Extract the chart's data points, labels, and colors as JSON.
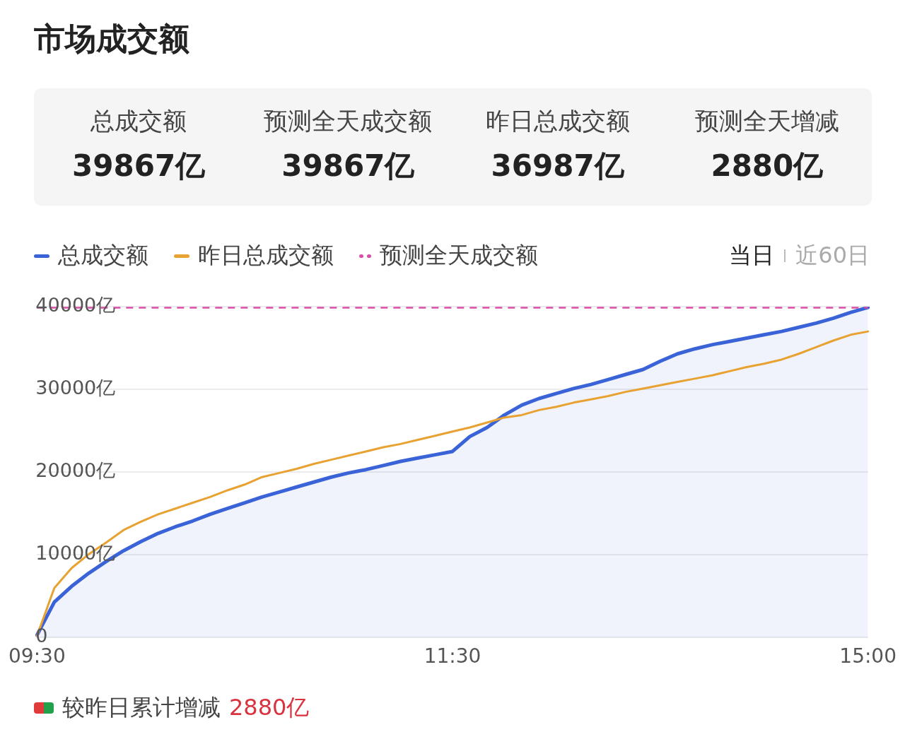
{
  "chart_data": {
    "type": "line",
    "title": "市场成交额",
    "annotations": [
      "总成交额",
      "39867亿",
      "预测全天成交额",
      "39867亿",
      "昨日总成交额",
      "36987亿",
      "预测全天增减",
      "2880亿",
      "当日",
      "近60日",
      "较昨日累计增减",
      "2880亿"
    ],
    "categories": [
      "09:30",
      null,
      null,
      null,
      null,
      null,
      null,
      null,
      null,
      null,
      null,
      null,
      null,
      null,
      null,
      null,
      null,
      null,
      null,
      null,
      null,
      null,
      null,
      null,
      "11:30",
      null,
      null,
      null,
      null,
      null,
      null,
      null,
      null,
      null,
      null,
      null,
      null,
      null,
      null,
      null,
      null,
      null,
      null,
      null,
      null,
      null,
      null,
      null,
      "15:00"
    ],
    "series": [
      {
        "name": "总成交额",
        "type": "area",
        "color": "#3a63d8",
        "values": [
          300,
          4300,
          6200,
          7800,
          9200,
          10500,
          11600,
          12600,
          13400,
          14100,
          14900,
          15600,
          16300,
          17000,
          17600,
          18200,
          18800,
          19400,
          19900,
          20300,
          20800,
          21300,
          21700,
          22100,
          22500,
          24300,
          25400,
          26900,
          28100,
          28900,
          29500,
          30100,
          30600,
          31200,
          31800,
          32400,
          33400,
          34300,
          34900,
          35400,
          35800,
          36200,
          36600,
          37000,
          37500,
          38000,
          38600,
          39300,
          39900
        ]
      },
      {
        "name": "昨日总成交额",
        "type": "line",
        "color": "#e8a232",
        "values": [
          200,
          6000,
          8400,
          10100,
          11500,
          13000,
          14000,
          14900,
          15600,
          16300,
          17000,
          17800,
          18500,
          19400,
          19900,
          20400,
          21000,
          21500,
          22000,
          22500,
          23000,
          23400,
          23900,
          24400,
          24900,
          25400,
          26000,
          26600,
          26900,
          27500,
          27900,
          28400,
          28800,
          29200,
          29700,
          30100,
          30500,
          30900,
          31300,
          31700,
          32200,
          32700,
          33100,
          33600,
          34300,
          35100,
          35900,
          36600,
          37000
        ]
      }
    ],
    "ref_lines": [
      {
        "axis": "y",
        "value": 39867,
        "label": "预测全天成交额",
        "color": "#d94fa6",
        "line_style": "dashed"
      }
    ],
    "ylim": [
      0,
      40000
    ],
    "yticks": [
      {
        "value": 0,
        "label": "0"
      },
      {
        "value": 10000,
        "label": "10000亿"
      },
      {
        "value": 20000,
        "label": "20000亿"
      },
      {
        "value": 30000,
        "label": "30000亿"
      },
      {
        "value": 40000,
        "label": "40000亿"
      }
    ],
    "grid": "y",
    "legend": "top left",
    "marker": "none",
    "line_style": "solid"
  }
}
